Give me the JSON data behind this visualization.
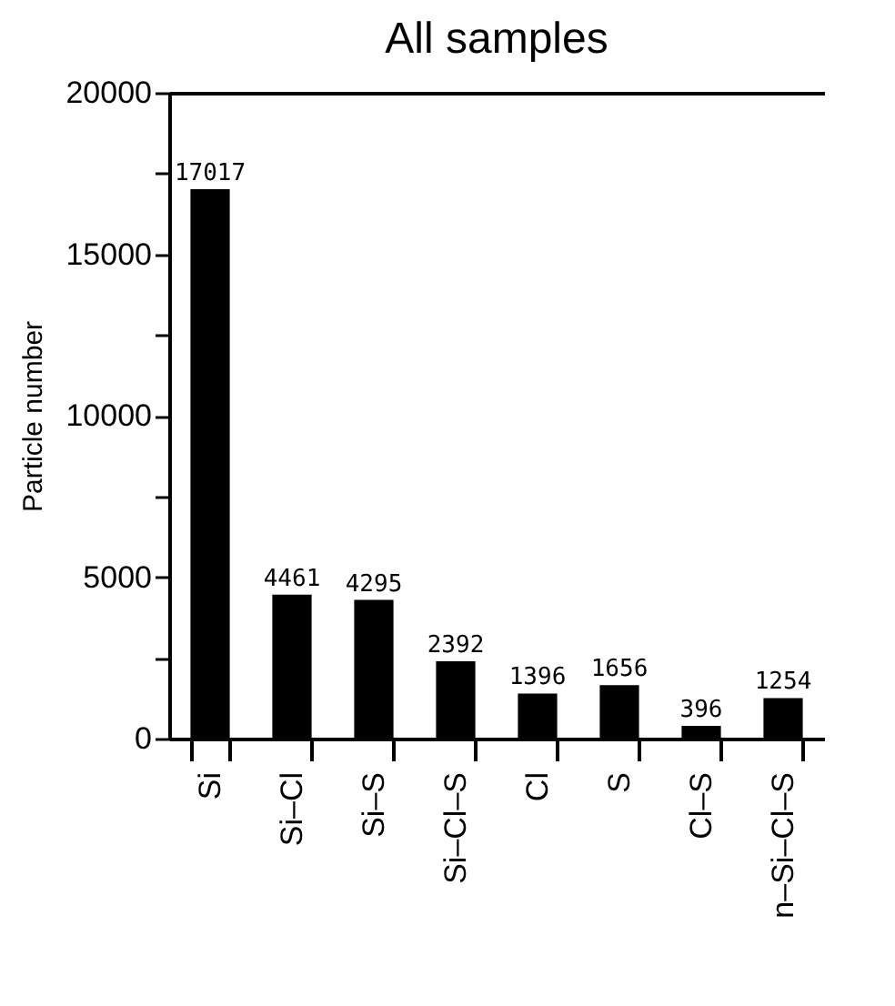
{
  "chart_data": {
    "type": "bar",
    "title": "All samples",
    "ylabel": "Particle number",
    "categories": [
      "Si",
      "Si–Cl",
      "Si–S",
      "Si–Cl–S",
      "Cl",
      "S",
      "Cl–S",
      "n–Si–Cl–S"
    ],
    "values": [
      17017,
      4461,
      4295,
      2392,
      1396,
      1656,
      396,
      1254
    ],
    "color": "#000000",
    "ylim": [
      0,
      20000
    ],
    "yticks": [
      0,
      {
        "value": 2500,
        "label": null
      },
      5000,
      {
        "value": 7500,
        "label": null
      },
      10000,
      {
        "value": 12500,
        "label": null
      },
      15000,
      {
        "value": 17500,
        "label": null
      },
      20000
    ],
    "data_labels": true,
    "grid": false
  }
}
